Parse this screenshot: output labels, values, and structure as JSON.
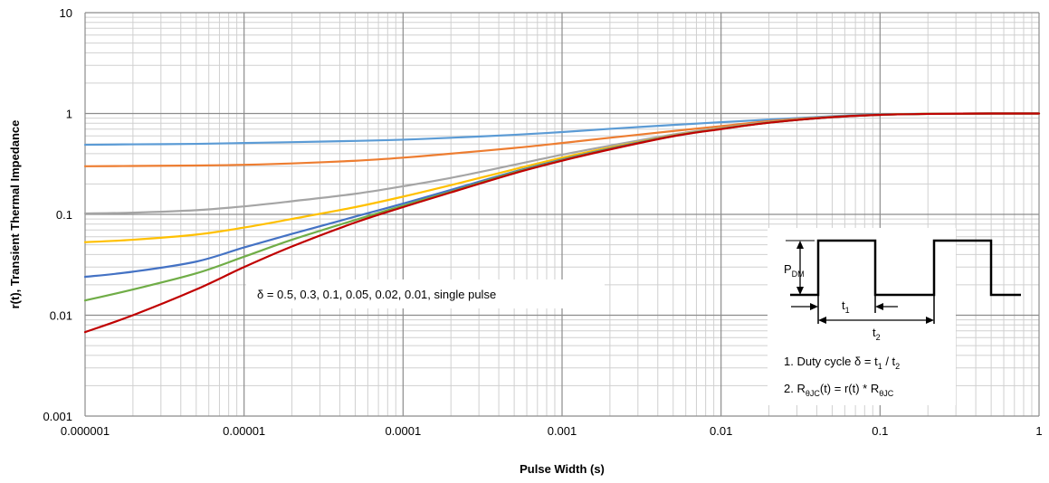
{
  "chart_data": {
    "type": "line",
    "title": "",
    "xlabel": "Pulse Width (s)",
    "ylabel": "r(t), Transient Thermal Impedance",
    "x_scale": "log",
    "y_scale": "log",
    "xlim": [
      1e-06,
      1
    ],
    "ylim": [
      0.001,
      10
    ],
    "grid": true,
    "x_ticks": [
      "0.000001",
      "0.00001",
      "0.0001",
      "0.001",
      "0.01",
      "0.1",
      "1"
    ],
    "y_ticks": [
      "10",
      "1",
      "0.1",
      "0.01",
      "0.001"
    ],
    "x": [
      1e-06,
      2e-06,
      5e-06,
      1e-05,
      2e-05,
      5e-05,
      0.0001,
      0.0002,
      0.0005,
      0.001,
      0.002,
      0.005,
      0.01,
      0.02,
      0.05,
      0.1,
      0.2,
      0.5,
      1
    ],
    "series": [
      {
        "color": "#5b9bd5",
        "values": [
          0.49,
          0.495,
          0.5,
          0.51,
          0.52,
          0.535,
          0.55,
          0.575,
          0.615,
          0.655,
          0.705,
          0.77,
          0.82,
          0.87,
          0.94,
          0.98,
          0.995,
          1.0,
          1.0
        ]
      },
      {
        "color": "#ed7d31",
        "values": [
          0.3,
          0.302,
          0.305,
          0.31,
          0.32,
          0.34,
          0.365,
          0.4,
          0.455,
          0.51,
          0.575,
          0.67,
          0.75,
          0.84,
          0.93,
          0.975,
          0.993,
          1.0,
          1.0
        ]
      },
      {
        "color": "#a5a5a5",
        "values": [
          0.102,
          0.104,
          0.11,
          0.12,
          0.135,
          0.16,
          0.19,
          0.23,
          0.31,
          0.39,
          0.48,
          0.62,
          0.72,
          0.82,
          0.925,
          0.972,
          0.992,
          1.0,
          1.0
        ]
      },
      {
        "color": "#ffc000",
        "values": [
          0.053,
          0.056,
          0.063,
          0.074,
          0.09,
          0.118,
          0.15,
          0.195,
          0.28,
          0.365,
          0.46,
          0.605,
          0.71,
          0.815,
          0.922,
          0.971,
          0.992,
          1.0,
          1.0
        ]
      },
      {
        "color": "#4472c4",
        "values": [
          0.024,
          0.027,
          0.034,
          0.047,
          0.064,
          0.095,
          0.128,
          0.175,
          0.265,
          0.35,
          0.45,
          0.6,
          0.705,
          0.812,
          0.921,
          0.97,
          0.991,
          1.0,
          1.0
        ]
      },
      {
        "color": "#70ad47",
        "values": [
          0.014,
          0.018,
          0.026,
          0.038,
          0.056,
          0.088,
          0.122,
          0.168,
          0.26,
          0.345,
          0.445,
          0.597,
          0.703,
          0.811,
          0.92,
          0.97,
          0.991,
          1.0,
          1.0
        ]
      },
      {
        "color": "#c00000",
        "values": [
          0.0068,
          0.01,
          0.018,
          0.03,
          0.048,
          0.083,
          0.118,
          0.165,
          0.255,
          0.34,
          0.44,
          0.595,
          0.7,
          0.81,
          0.92,
          0.97,
          0.991,
          1.0,
          1.0
        ]
      }
    ]
  },
  "annotations": {
    "duty_label": "δ = 0.5, 0.3, 0.1, 0.05, 0.02, 0.01, single pulse",
    "inset": {
      "pdm_main": "P",
      "pdm_sub": "DM",
      "t1_main": "t",
      "t1_sub": "1",
      "t2_main": "t",
      "t2_sub": "2",
      "note1_prefix": "1. Duty cycle  δ = t",
      "note1_sub1": "1",
      "note1_mid": " / t",
      "note1_sub2": "2",
      "note2_prefix": "2. R",
      "note2_sub1": "θJC",
      "note2_mid": "(t) = r(t) * R",
      "note2_sub2": "θJC"
    }
  }
}
